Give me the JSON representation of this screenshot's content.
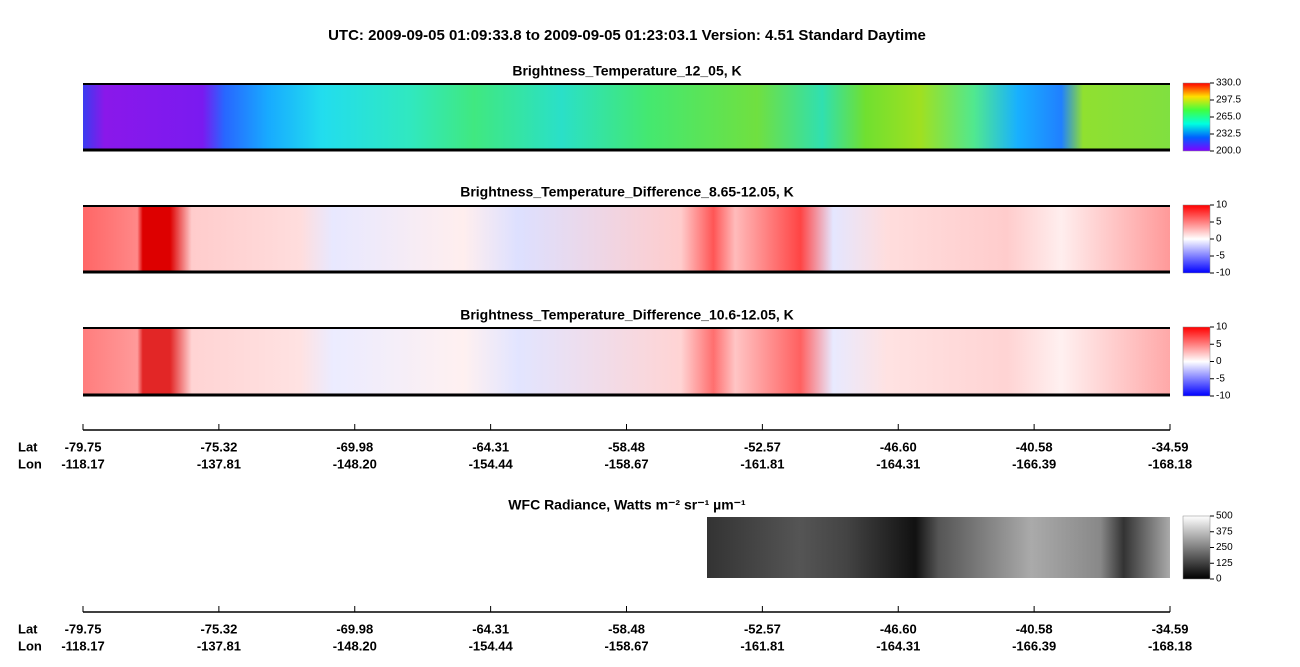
{
  "title": "UTC:  2009-09-05   01:09:33.8  to  2009-09-05   01:23:03.1    Version: 4.51  Standard Daytime",
  "chart_data": [
    {
      "type": "heatmap",
      "title": "Brightness_Temperature_12_05, K",
      "colormap": "rainbow",
      "clim": [
        200,
        330
      ],
      "cticks": [
        {
          "value": 330,
          "label": "330.0"
        },
        {
          "value": 297.5,
          "label": "297.5"
        },
        {
          "value": 265,
          "label": "265.0"
        },
        {
          "value": 232.5,
          "label": "232.5"
        },
        {
          "value": 200,
          "label": "200.0"
        }
      ]
    },
    {
      "type": "heatmap",
      "title": "Brightness_Temperature_Difference_8.65-12.05, K",
      "colormap": "bwr",
      "clim": [
        -10,
        10
      ],
      "cticks": [
        10,
        5,
        0,
        -5,
        -10
      ]
    },
    {
      "type": "heatmap",
      "title": "Brightness_Temperature_Difference_10.6-12.05, K",
      "colormap": "bwr",
      "clim": [
        -10,
        10
      ],
      "cticks": [
        10,
        5,
        0,
        -5,
        -10
      ]
    },
    {
      "type": "heatmap",
      "title": "WFC Radiance, Watts m⁻² sr⁻¹ µm⁻¹",
      "colormap": "gray",
      "clim": [
        0,
        500
      ],
      "cticks": [
        500,
        375,
        250,
        125,
        0
      ]
    }
  ],
  "axes": [
    {
      "rows": [
        {
          "name": "Lat",
          "values": [
            "-79.75",
            "-75.32",
            "-69.98",
            "-64.31",
            "-58.48",
            "-52.57",
            "-46.60",
            "-40.58",
            "-34.59"
          ]
        },
        {
          "name": "Lon",
          "values": [
            "-118.17",
            "-137.81",
            "-148.20",
            "-154.44",
            "-158.67",
            "-161.81",
            "-164.31",
            "-166.39",
            "-168.18"
          ]
        }
      ]
    },
    {
      "rows": [
        {
          "name": "Lat",
          "values": [
            "-79.75",
            "-75.32",
            "-69.98",
            "-64.31",
            "-58.48",
            "-52.57",
            "-46.60",
            "-40.58",
            "-34.59"
          ]
        },
        {
          "name": "Lon",
          "values": [
            "-118.17",
            "-137.81",
            "-148.20",
            "-154.44",
            "-158.67",
            "-161.81",
            "-164.31",
            "-166.39",
            "-168.18"
          ]
        }
      ]
    }
  ]
}
